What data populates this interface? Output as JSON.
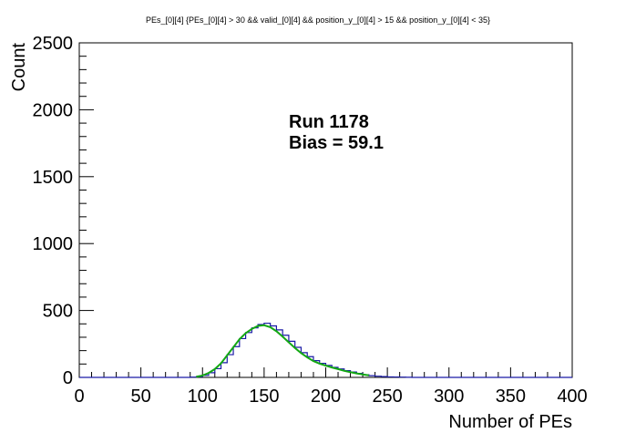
{
  "chart_data": {
    "type": "line",
    "title": "PEs_[0][4]  {PEs_[0][4] > 30 && valid_[0][4] && position_y_[0][4] > 15 && position_y_[0][4] < 35}",
    "xlabel": "Number of PEs",
    "ylabel": "Count",
    "xlim": [
      0,
      400
    ],
    "ylim": [
      0,
      2500
    ],
    "xticks": [
      0,
      50,
      100,
      150,
      200,
      250,
      300,
      350,
      400
    ],
    "yticks": [
      0,
      500,
      1000,
      1500,
      2000,
      2500
    ],
    "grid": false,
    "annotations": [
      "Run 1178",
      "Bias = 59.1"
    ],
    "colors": {
      "histogram": "#1a1aa6",
      "fit": "#13a813",
      "frame": "#000000"
    },
    "series": [
      {
        "style": "histogram",
        "x": [
          0,
          10,
          20,
          30,
          40,
          50,
          60,
          70,
          80,
          85,
          90,
          95,
          100,
          105,
          110,
          115,
          120,
          125,
          130,
          135,
          140,
          145,
          150,
          155,
          160,
          165,
          170,
          175,
          180,
          185,
          190,
          195,
          200,
          205,
          210,
          215,
          220,
          225,
          230,
          235,
          240,
          245,
          250,
          255,
          260,
          265,
          270,
          280,
          290,
          300,
          310,
          320,
          330,
          340,
          350,
          360,
          370,
          380,
          390,
          400
        ],
        "values": [
          0,
          0,
          0,
          0,
          0,
          0,
          0,
          0,
          0,
          0,
          2,
          5,
          15,
          35,
          65,
          110,
          170,
          230,
          290,
          335,
          370,
          395,
          405,
          385,
          355,
          315,
          270,
          225,
          185,
          155,
          125,
          105,
          90,
          75,
          63,
          50,
          40,
          30,
          20,
          13,
          9,
          6,
          4,
          3,
          2,
          1,
          0,
          0,
          0,
          0,
          0,
          0,
          0,
          0,
          0,
          0,
          0,
          0,
          0,
          0
        ]
      },
      {
        "style": "fit",
        "x": [
          95,
          100,
          105,
          110,
          115,
          120,
          125,
          130,
          135,
          140,
          145,
          150,
          155,
          160,
          165,
          170,
          175,
          180,
          185,
          190,
          195,
          200,
          205,
          210,
          215,
          220,
          225,
          230,
          235
        ],
        "values": [
          5,
          14,
          33,
          62,
          105,
          165,
          225,
          285,
          330,
          362,
          385,
          390,
          375,
          345,
          305,
          262,
          220,
          182,
          150,
          122,
          103,
          88,
          74,
          62,
          49,
          39,
          30,
          22,
          15
        ]
      }
    ]
  }
}
